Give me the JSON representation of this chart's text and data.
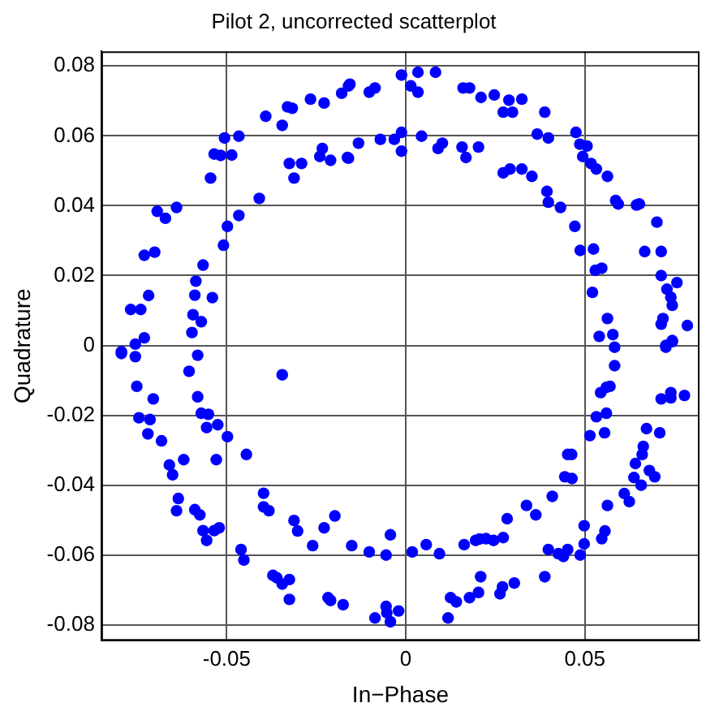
{
  "chart_data": {
    "type": "scatter",
    "title": "Pilot 2, uncorrected scatterplot",
    "xlabel": "In−Phase",
    "ylabel": "Quadrature",
    "xlim": [
      -0.085,
      0.082
    ],
    "ylim": [
      -0.0845,
      0.0842
    ],
    "xticks": [
      -0.05,
      0,
      0.05
    ],
    "yticks": [
      -0.08,
      -0.06,
      -0.04,
      -0.02,
      0,
      0.02,
      0.04,
      0.06,
      0.08
    ],
    "grid": true,
    "marker": "circle",
    "color": "#0000ff",
    "x": [
      -0.0794,
      -0.0755,
      -0.073,
      -0.0768,
      -0.074,
      -0.0718,
      -0.073,
      -0.0701,
      -0.0694,
      -0.0671,
      -0.064,
      -0.0545,
      -0.0535,
      -0.0517,
      -0.0506,
      -0.0486,
      -0.0466,
      -0.0391,
      -0.0345,
      -0.033,
      -0.0317,
      -0.0266,
      -0.0228,
      -0.0179,
      -0.016,
      -0.0597,
      -0.0594,
      -0.0589,
      -0.0586,
      -0.0571,
      -0.0566,
      -0.054,
      -0.0509,
      -0.0498,
      -0.0466,
      -0.0409,
      -0.0325,
      -0.0312,
      -0.0291,
      -0.024,
      -0.0233,
      -0.021,
      -0.0163,
      -0.0156,
      -0.0102,
      -0.0086,
      -0.0012,
      0.0034,
      0.0014,
      0.0034,
      0.0083,
      0.016,
      0.0178,
      0.021,
      0.0247,
      0.0288,
      0.0272,
      0.0298,
      0.0324,
      0.0388,
      0.0475,
      0.0486,
      0.0506,
      0.0494,
      0.0517,
      0.0532,
      0.0563,
      0.0586,
      0.0593,
      0.0644,
      0.0652,
      0.0701,
      0.0667,
      0.0713,
      0.0713,
      0.0757,
      0.0729,
      0.074,
      0.0744,
      0.0718,
      0.0713,
      0.0786,
      0.0744,
      0.0726,
      -0.0132,
      -0.016,
      -0.0071,
      -0.0032,
      -0.0012,
      -0.0012,
      0.0044,
      0.009,
      0.0102,
      0.0157,
      0.0168,
      0.0203,
      0.0272,
      0.0291,
      0.0324,
      0.0352,
      0.0367,
      0.0398,
      0.0394,
      0.0398,
      0.0432,
      0.0472,
      0.0487,
      0.0524,
      0.0529,
      0.0547,
      0.0521,
      0.0563,
      0.054,
      0.0578,
      0.0583,
      -0.0794,
      -0.0755,
      -0.0751,
      -0.0745,
      -0.0714,
      -0.072,
      -0.0705,
      -0.0682,
      -0.066,
      -0.0651,
      -0.0635,
      -0.064,
      -0.0589,
      -0.0575,
      -0.0566,
      -0.0556,
      -0.0535,
      -0.0521,
      -0.046,
      -0.0452,
      -0.0371,
      -0.036,
      -0.0345,
      -0.0325,
      -0.0325,
      -0.0217,
      -0.021,
      -0.0175,
      -0.0581,
      -0.0605,
      -0.0581,
      -0.0571,
      -0.0551,
      -0.0556,
      -0.0525,
      -0.0498,
      -0.062,
      -0.0529,
      -0.0445,
      -0.0397,
      -0.0397,
      -0.0382,
      -0.0312,
      -0.0302,
      -0.026,
      -0.0228,
      -0.0198,
      -0.0345,
      -0.0086,
      -0.0055,
      -0.0053,
      -0.0043,
      -0.002,
      0.0118,
      0.0125,
      0.0141,
      0.0178,
      0.0203,
      0.0209,
      0.0263,
      0.027,
      0.0303,
      0.0388,
      0.0398,
      0.0426,
      0.044,
      0.0452,
      0.0487,
      0.0498,
      0.0498,
      0.0547,
      0.0556,
      0.0563,
      0.061,
      0.0624,
      0.0637,
      0.0657,
      0.0641,
      0.066,
      0.0663,
      0.068,
      0.0695,
      0.0672,
      0.0709,
      0.0713,
      0.074,
      0.074,
      0.0778,
      0.0726,
      0.0744,
      0.0583,
      0.0544,
      0.056,
      0.057,
      0.0532,
      0.056,
      0.0555,
      0.0514,
      0.0452,
      0.0463,
      0.0444,
      0.0464,
      0.0409,
      0.0337,
      0.0363,
      0.0283,
      0.0272,
      0.0245,
      0.0224,
      0.0206,
      0.0195,
      0.0163,
      0.0094,
      0.0057,
      0.0018,
      -0.0043,
      -0.0055,
      -0.0102,
      -0.0151
    ],
    "values": [
      -0.0018,
      0.0004,
      0.0022,
      0.0103,
      0.0103,
      0.0143,
      0.0258,
      0.0267,
      0.0384,
      0.0364,
      0.0395,
      0.0479,
      0.0548,
      0.0544,
      0.0594,
      0.0545,
      0.0599,
      0.0656,
      0.063,
      0.0683,
      0.0679,
      0.0705,
      0.0694,
      0.0722,
      0.0743,
      0.0037,
      0.0088,
      0.0144,
      0.0184,
      0.0068,
      0.023,
      0.0137,
      0.0287,
      0.0341,
      0.0372,
      0.0421,
      0.0521,
      0.0479,
      0.0521,
      0.0541,
      0.0564,
      0.053,
      0.0538,
      0.0748,
      0.0725,
      0.0737,
      0.0774,
      0.0782,
      0.0743,
      0.0725,
      0.0782,
      0.0737,
      0.0737,
      0.071,
      0.0717,
      0.0702,
      0.0668,
      0.0668,
      0.0705,
      0.0668,
      0.061,
      0.0576,
      0.0571,
      0.0541,
      0.0521,
      0.0505,
      0.0484,
      0.0415,
      0.0405,
      0.0402,
      0.0405,
      0.0353,
      0.0269,
      0.0269,
      0.02,
      0.018,
      0.0161,
      0.0138,
      0.0115,
      0.0077,
      0.0061,
      0.0057,
      0.0014,
      -0.0005,
      0.0579,
      0.0536,
      0.059,
      0.059,
      0.061,
      0.0556,
      0.0599,
      0.0564,
      0.0579,
      0.0568,
      0.0538,
      0.0568,
      0.0494,
      0.0505,
      0.0505,
      0.0484,
      0.0605,
      0.0594,
      0.0441,
      0.041,
      0.0395,
      0.0341,
      0.0272,
      0.0276,
      0.0215,
      0.0221,
      0.0152,
      0.0077,
      0.0026,
      0.0031,
      -0.0005,
      -0.0023,
      -0.0032,
      -0.0117,
      -0.0207,
      -0.0212,
      -0.0253,
      -0.0153,
      -0.0273,
      -0.0342,
      -0.037,
      -0.0438,
      -0.0473,
      -0.047,
      -0.0485,
      -0.053,
      -0.0558,
      -0.053,
      -0.0522,
      -0.0584,
      -0.0614,
      -0.0658,
      -0.0665,
      -0.0683,
      -0.067,
      -0.0727,
      -0.0722,
      -0.073,
      -0.0742,
      -0.0028,
      -0.0074,
      -0.0147,
      -0.0194,
      -0.0197,
      -0.0235,
      -0.0227,
      -0.0261,
      -0.0327,
      -0.0327,
      -0.0312,
      -0.0423,
      -0.0462,
      -0.0473,
      -0.0501,
      -0.0531,
      -0.0573,
      -0.0522,
      -0.0488,
      -0.0084,
      -0.078,
      -0.0747,
      -0.0765,
      -0.0791,
      -0.076,
      -0.078,
      -0.0722,
      -0.0734,
      -0.0722,
      -0.0707,
      -0.0662,
      -0.0711,
      -0.0691,
      -0.068,
      -0.0662,
      -0.0584,
      -0.0596,
      -0.0604,
      -0.0584,
      -0.06,
      -0.0568,
      -0.0516,
      -0.0553,
      -0.0531,
      -0.0458,
      -0.0424,
      -0.0447,
      -0.0378,
      -0.04,
      -0.0338,
      -0.0312,
      -0.0289,
      -0.0358,
      -0.0376,
      -0.0238,
      -0.025,
      -0.0153,
      -0.0135,
      -0.015,
      -0.0143,
      0,
      0.0011,
      -0.0058,
      -0.0135,
      -0.012,
      -0.0117,
      -0.0204,
      -0.0194,
      -0.025,
      -0.0258,
      -0.0312,
      -0.0312,
      -0.0376,
      -0.0381,
      -0.0432,
      -0.0458,
      -0.0485,
      -0.0496,
      -0.055,
      -0.0558,
      -0.0553,
      -0.0554,
      -0.0558,
      -0.057,
      -0.0596,
      -0.057,
      -0.0591,
      -0.0542,
      -0.06,
      -0.0591,
      -0.0573
    ]
  }
}
